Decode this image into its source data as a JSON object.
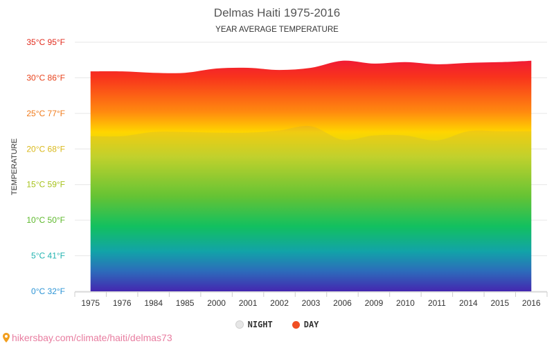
{
  "chart_data": {
    "type": "area",
    "title": "Delmas Haiti 1975-2016",
    "subtitle": "YEAR AVERAGE TEMPERATURE",
    "ylabel": "TEMPERATURE",
    "xlabel": "",
    "categories": [
      "1975",
      "1976",
      "1984",
      "1985",
      "2000",
      "2001",
      "2002",
      "2003",
      "2006",
      "2009",
      "2010",
      "2011",
      "2014",
      "2015",
      "2016"
    ],
    "series": [
      {
        "name": "DAY",
        "color": "#f04e23",
        "values": [
          30.9,
          30.9,
          30.7,
          30.7,
          31.3,
          31.4,
          31.1,
          31.4,
          32.4,
          32.0,
          32.2,
          31.9,
          32.1,
          32.2,
          32.4
        ]
      },
      {
        "name": "NIGHT",
        "color": "#e6e6e6",
        "values": [
          21.8,
          21.8,
          22.4,
          22.4,
          22.3,
          22.3,
          22.6,
          23.2,
          21.3,
          21.9,
          21.9,
          21.2,
          22.5,
          22.5,
          22.5
        ]
      }
    ],
    "ylim": [
      0,
      35
    ],
    "yticks": [
      {
        "value": 0,
        "label": "0°C 32°F",
        "color": "#2a93d5"
      },
      {
        "value": 5,
        "label": "5°C 41°F",
        "color": "#22b3b0"
      },
      {
        "value": 10,
        "label": "10°C 50°F",
        "color": "#5cb82a"
      },
      {
        "value": 15,
        "label": "15°C 59°F",
        "color": "#a6c21a"
      },
      {
        "value": 20,
        "label": "20°C 68°F",
        "color": "#d9b81a"
      },
      {
        "value": 25,
        "label": "25°C 77°F",
        "color": "#f07a1a"
      },
      {
        "value": 30,
        "label": "30°C 86°F",
        "color": "#e8431c"
      },
      {
        "value": 35,
        "label": "35°C 95°F",
        "color": "#e12a1c"
      }
    ],
    "grid": true,
    "legend_position": "bottom"
  },
  "legend": {
    "night_label": "NIGHT",
    "day_label": "DAY"
  },
  "source": {
    "text": "hikersbay.com/climate/haiti/delmas73"
  }
}
